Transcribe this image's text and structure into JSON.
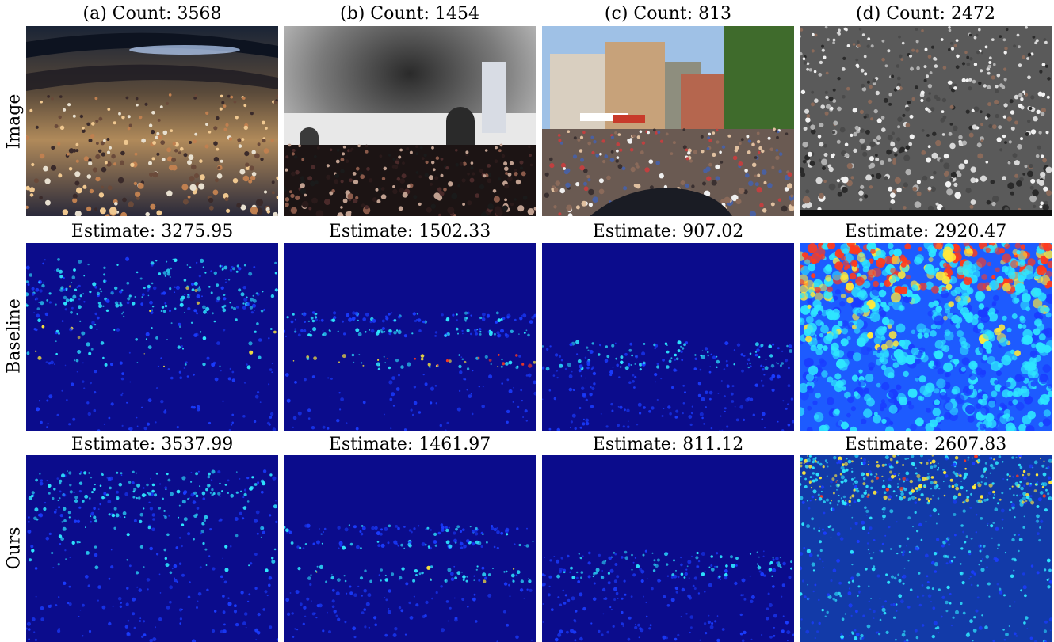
{
  "figure": {
    "rows": [
      {
        "label": "Image"
      },
      {
        "label": "Baseline"
      },
      {
        "label": "Ours"
      }
    ],
    "columns": [
      {
        "caption": "(a) Count: 3568",
        "baseline_caption": "Estimate: 3275.95",
        "ours_caption": "Estimate: 3537.99",
        "image_desc_icon": "stadium-concert-crowd-photo"
      },
      {
        "caption": "(b) Count: 1454",
        "baseline_caption": "Estimate: 1502.33",
        "ours_caption": "Estimate: 1461.97",
        "image_desc_icon": "crowd-with-smoke-photo"
      },
      {
        "caption": "(c) Count: 813",
        "baseline_caption": "Estimate: 907.02",
        "ours_caption": "Estimate: 811.12",
        "image_desc_icon": "street-crowd-photo"
      },
      {
        "caption": "(d) Count: 2472",
        "baseline_caption": "Estimate: 2920.47",
        "ours_caption": "Estimate: 2607.83",
        "image_desc_icon": "dense-crowd-photo"
      }
    ]
  },
  "colors": {
    "density_background": "#0b0c8c",
    "density_low": "#1a3cff",
    "density_mid": "#2ee6ff",
    "density_high": "#ffe93b",
    "density_peak": "#ff3b1e"
  }
}
